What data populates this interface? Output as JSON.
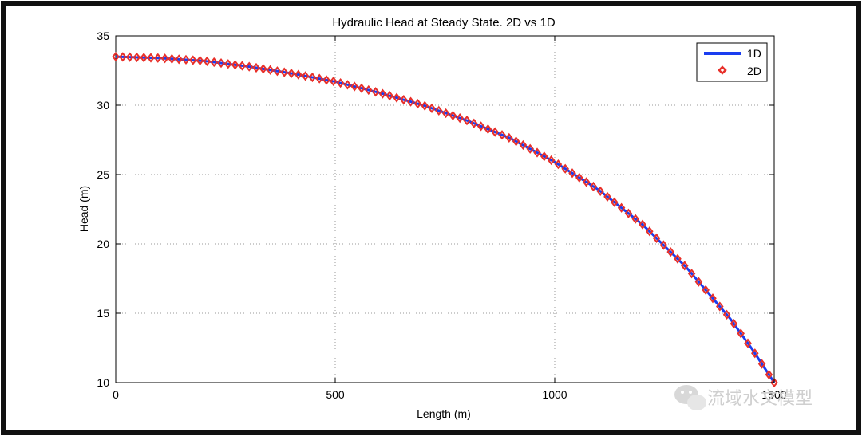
{
  "chart_data": {
    "type": "line",
    "title": "Hydraulic Head at Steady State. 2D vs 1D",
    "xlabel": "Length (m)",
    "ylabel": "Head (m)",
    "xlim": [
      0,
      1500
    ],
    "ylim": [
      10,
      35
    ],
    "xticks": [
      "0",
      "500",
      "1000",
      "1500"
    ],
    "yticks": [
      "10",
      "15",
      "20",
      "25",
      "30",
      "35"
    ],
    "grid": true,
    "legend_position": "top-right",
    "series": [
      {
        "name": "1D",
        "style": "line",
        "color": "#1a3df0",
        "x": [
          0,
          100,
          200,
          300,
          400,
          500,
          600,
          700,
          800,
          900,
          1000,
          1100,
          1200,
          1300,
          1400,
          1450,
          1500
        ],
        "y": [
          33.5,
          33.4,
          33.2,
          32.8,
          32.3,
          31.7,
          30.9,
          30.0,
          28.9,
          27.6,
          25.9,
          23.9,
          21.4,
          18.3,
          14.6,
          12.4,
          10.0
        ]
      },
      {
        "name": "2D",
        "style": "markers",
        "marker": "diamond",
        "color": "#e8302a",
        "x": [
          0,
          100,
          200,
          300,
          400,
          500,
          600,
          700,
          800,
          900,
          1000,
          1100,
          1200,
          1300,
          1400,
          1450,
          1500
        ],
        "y": [
          33.5,
          33.4,
          33.2,
          32.8,
          32.3,
          31.7,
          30.9,
          30.0,
          28.9,
          27.6,
          25.9,
          23.9,
          21.4,
          18.3,
          14.6,
          12.4,
          10.0
        ]
      }
    ]
  },
  "watermark": {
    "text": "流域水文模型",
    "icon": "wechat-icon"
  }
}
